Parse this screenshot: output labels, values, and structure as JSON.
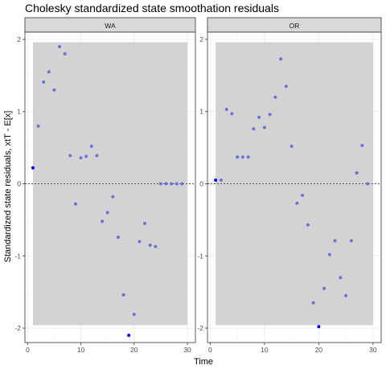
{
  "chart_data": {
    "type": "scatter",
    "title": "Cholesky standardized state smoothation residuals",
    "xlabel": "Time",
    "ylabel": "Standardized state residuals, xtT - E[x]",
    "grid": true,
    "colors": {
      "point": "#7070d8",
      "point_highlight": "#0000ff",
      "band": "#d3d3d3",
      "strip": "#d9d9d9",
      "zero_line": "#555555"
    },
    "panels": [
      {
        "strip_label": "WA",
        "xlim": [
          -0.5,
          31.5
        ],
        "ylim": [
          -2.2,
          2.1
        ],
        "xticks": [
          0,
          10,
          20,
          30
        ],
        "yticks": [
          -2,
          -1,
          0,
          1,
          2
        ],
        "band": {
          "x_from": 1,
          "x_to": 30,
          "y_from": -1.96,
          "y_to": 1.96
        },
        "points": [
          {
            "x": 1,
            "y": 0.22,
            "highlight": true
          },
          {
            "x": 2,
            "y": 0.8
          },
          {
            "x": 3,
            "y": 1.41
          },
          {
            "x": 4,
            "y": 1.55
          },
          {
            "x": 5,
            "y": 1.3
          },
          {
            "x": 6,
            "y": 1.9
          },
          {
            "x": 7,
            "y": 1.8
          },
          {
            "x": 8,
            "y": 0.39
          },
          {
            "x": 9,
            "y": -0.28
          },
          {
            "x": 10,
            "y": 0.36
          },
          {
            "x": 11,
            "y": 0.38
          },
          {
            "x": 12,
            "y": 0.52
          },
          {
            "x": 13,
            "y": 0.39
          },
          {
            "x": 14,
            "y": -0.52
          },
          {
            "x": 15,
            "y": -0.4
          },
          {
            "x": 16,
            "y": -0.18
          },
          {
            "x": 17,
            "y": -0.74
          },
          {
            "x": 18,
            "y": -1.54
          },
          {
            "x": 19,
            "y": -2.1,
            "highlight": true
          },
          {
            "x": 20,
            "y": -1.81
          },
          {
            "x": 21,
            "y": -0.8
          },
          {
            "x": 22,
            "y": -0.55
          },
          {
            "x": 23,
            "y": -0.85
          },
          {
            "x": 24,
            "y": -0.87
          },
          {
            "x": 25,
            "y": 0.0
          },
          {
            "x": 26,
            "y": 0.0
          },
          {
            "x": 27,
            "y": 0.0
          },
          {
            "x": 28,
            "y": 0.0
          },
          {
            "x": 29,
            "y": 0.0
          }
        ]
      },
      {
        "strip_label": "OR",
        "xlim": [
          -0.5,
          31.5
        ],
        "ylim": [
          -2.2,
          2.1
        ],
        "xticks": [
          0,
          10,
          20,
          30
        ],
        "yticks": [
          -2,
          -1,
          0,
          1,
          2
        ],
        "band": {
          "x_from": 1,
          "x_to": 30,
          "y_from": -1.96,
          "y_to": 1.96
        },
        "points": [
          {
            "x": 1,
            "y": 0.05,
            "highlight": true
          },
          {
            "x": 2,
            "y": 0.05
          },
          {
            "x": 3,
            "y": 1.03
          },
          {
            "x": 4,
            "y": 0.97
          },
          {
            "x": 5,
            "y": 0.37
          },
          {
            "x": 6,
            "y": 0.37
          },
          {
            "x": 7,
            "y": 0.37
          },
          {
            "x": 8,
            "y": 0.76
          },
          {
            "x": 9,
            "y": 0.92
          },
          {
            "x": 10,
            "y": 0.78
          },
          {
            "x": 11,
            "y": 0.96
          },
          {
            "x": 12,
            "y": 1.2
          },
          {
            "x": 13,
            "y": 1.73
          },
          {
            "x": 14,
            "y": 1.35
          },
          {
            "x": 15,
            "y": 0.52
          },
          {
            "x": 16,
            "y": -0.27
          },
          {
            "x": 17,
            "y": -0.16
          },
          {
            "x": 18,
            "y": -0.57
          },
          {
            "x": 19,
            "y": -1.65
          },
          {
            "x": 20,
            "y": -1.98,
            "highlight": true
          },
          {
            "x": 21,
            "y": -1.45
          },
          {
            "x": 22,
            "y": -0.98
          },
          {
            "x": 23,
            "y": -0.79
          },
          {
            "x": 24,
            "y": -1.3
          },
          {
            "x": 25,
            "y": -1.55
          },
          {
            "x": 26,
            "y": -0.79
          },
          {
            "x": 27,
            "y": 0.15
          },
          {
            "x": 28,
            "y": 0.53
          },
          {
            "x": 29,
            "y": 0.0
          }
        ]
      }
    ]
  }
}
